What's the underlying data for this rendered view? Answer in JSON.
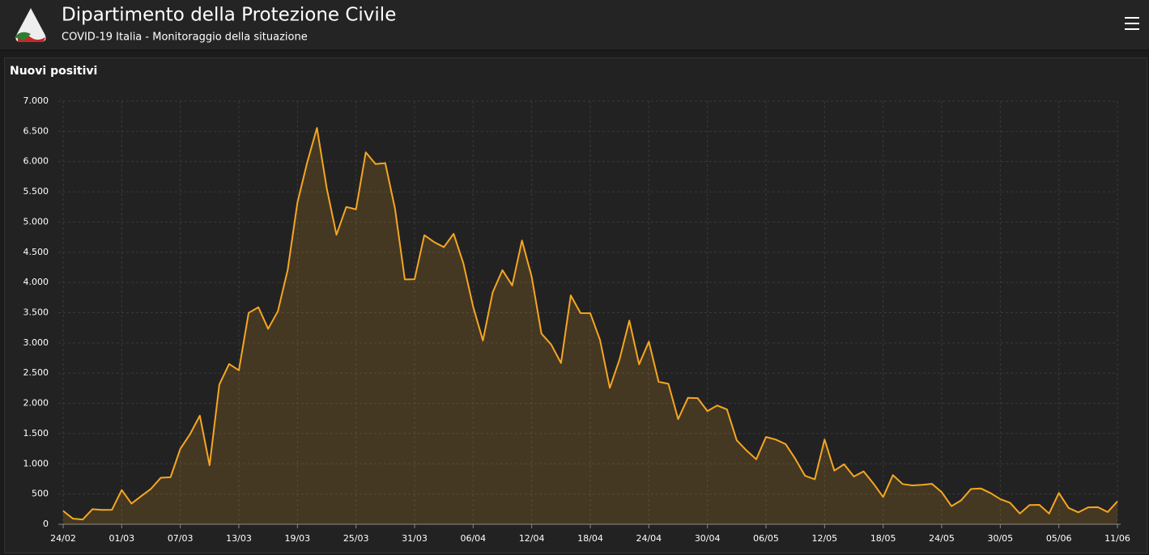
{
  "header": {
    "title": "Dipartimento della Protezione Civile",
    "subtitle": "COVID-19 Italia - Monitoraggio della situazione"
  },
  "chart_data": {
    "type": "area",
    "title": "Nuovi positivi",
    "color": "#f5a623",
    "grid": true,
    "categories": [
      "24/02",
      null,
      null,
      null,
      null,
      null,
      "01/03",
      null,
      null,
      null,
      null,
      null,
      "07/03",
      null,
      null,
      null,
      null,
      null,
      "13/03",
      null,
      null,
      null,
      null,
      null,
      "19/03",
      null,
      null,
      null,
      null,
      null,
      "25/03",
      null,
      null,
      null,
      null,
      null,
      "31/03",
      null,
      null,
      null,
      null,
      null,
      "06/04",
      null,
      null,
      null,
      null,
      null,
      "12/04",
      null,
      null,
      null,
      null,
      null,
      "18/04",
      null,
      null,
      null,
      null,
      null,
      "24/04",
      null,
      null,
      null,
      null,
      null,
      "30/04",
      null,
      null,
      null,
      null,
      null,
      "06/05",
      null,
      null,
      null,
      null,
      null,
      "12/05",
      null,
      null,
      null,
      null,
      null,
      "18/05",
      null,
      null,
      null,
      null,
      null,
      "24/05",
      null,
      null,
      null,
      null,
      null,
      "30/05",
      null,
      null,
      null,
      null,
      null,
      "05/06",
      null,
      null,
      null,
      null,
      null,
      "11/06"
    ],
    "values": [
      221,
      93,
      78,
      250,
      238,
      240,
      566,
      342,
      466,
      587,
      769,
      778,
      1247,
      1492,
      1797,
      977,
      2313,
      2651,
      2547,
      3497,
      3590,
      3233,
      3526,
      4207,
      5322,
      5986,
      6557,
      5560,
      4789,
      5249,
      5210,
      6153,
      5959,
      5974,
      5217,
      4050,
      4053,
      4782,
      4668,
      4585,
      4805,
      4316,
      3599,
      3039,
      3836,
      4204,
      3951,
      4694,
      4092,
      3153,
      2972,
      2667,
      3786,
      3493,
      3491,
      3047,
      2256,
      2729,
      3370,
      2646,
      3021,
      2357,
      2324,
      1739,
      2091,
      2086,
      1872,
      1965,
      1900,
      1389,
      1221,
      1075,
      1444,
      1401,
      1327,
      1083,
      802,
      744,
      1402,
      888,
      992,
      789,
      875,
      675,
      451,
      813,
      665,
      642,
      652,
      669,
      531,
      300,
      397,
      584,
      593,
      516,
      416,
      355,
      178,
      318,
      321,
      177,
      518,
      270,
      197,
      280,
      283,
      202,
      379
    ],
    "ylim": [
      0,
      7000
    ],
    "yticks": [
      0,
      500,
      {
        "value": 1000,
        "label": "1.000"
      },
      {
        "value": 1500,
        "label": "1.500"
      },
      {
        "value": 2000,
        "label": "2.000"
      },
      {
        "value": 2500,
        "label": "2.500"
      },
      {
        "value": 3000,
        "label": "3.000"
      },
      {
        "value": 3500,
        "label": "3.500"
      },
      {
        "value": 4000,
        "label": "4.000"
      },
      {
        "value": 4500,
        "label": "4.500"
      },
      {
        "value": 5000,
        "label": "5.000"
      },
      {
        "value": 5500,
        "label": "5.500"
      },
      {
        "value": 6000,
        "label": "6.000"
      },
      {
        "value": 6500,
        "label": "6.500"
      },
      {
        "value": 7000,
        "label": "7.000"
      }
    ]
  }
}
